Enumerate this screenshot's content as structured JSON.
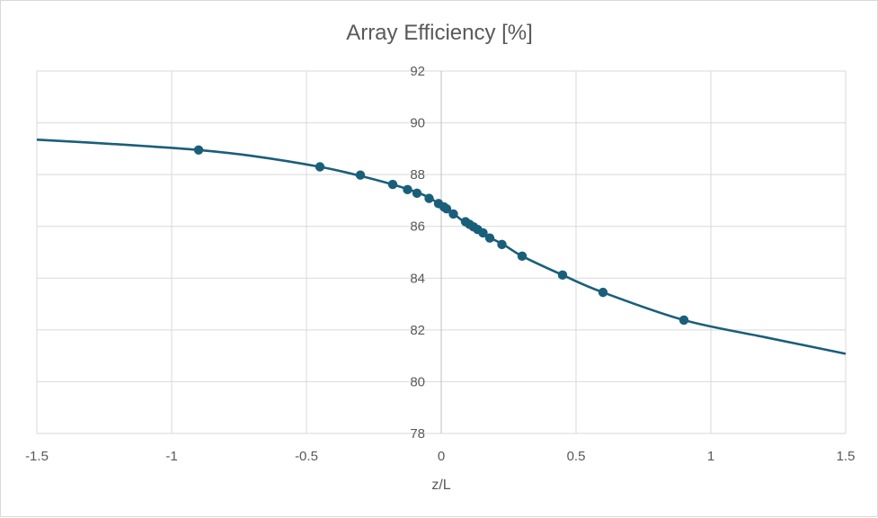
{
  "chart_data": {
    "type": "scatter",
    "title": "Array Efficiency [%]",
    "xlabel": "z/L",
    "ylabel": "",
    "xlim": [
      -1.5,
      1.5
    ],
    "ylim": [
      78,
      92
    ],
    "x_ticks": [
      -1.5,
      -1,
      -0.5,
      0,
      0.5,
      1,
      1.5
    ],
    "x_tick_labels": [
      "-1.5",
      "-1",
      "-0.5",
      "0",
      "0.5",
      "1",
      "1.5"
    ],
    "y_ticks": [
      78,
      80,
      82,
      84,
      86,
      88,
      90,
      92
    ],
    "y_tick_labels": [
      "78",
      "80",
      "82",
      "84",
      "86",
      "88",
      "90",
      "92"
    ],
    "grid": true,
    "legend": "none",
    "color": "#1a5f7a",
    "series": [
      {
        "curve": {
          "x": [
            -1.5,
            -1.2,
            -0.9,
            -0.7,
            -0.45,
            -0.3,
            -0.18,
            -0.12,
            -0.08,
            -0.04,
            -0.01,
            0.01,
            0.02,
            0.05,
            0.1,
            0.15,
            0.23,
            0.3,
            0.45,
            0.6,
            0.9,
            1.2,
            1.5
          ],
          "y": [
            89.35,
            89.17,
            88.95,
            88.72,
            88.3,
            87.95,
            87.62,
            87.42,
            87.28,
            87.08,
            86.88,
            86.75,
            86.65,
            86.45,
            86.05,
            85.72,
            85.3,
            84.85,
            84.12,
            83.45,
            82.38,
            81.72,
            81.08
          ]
        },
        "points": {
          "x": [
            -0.9,
            -0.45,
            -0.3,
            -0.18,
            -0.125,
            -0.09,
            -0.045,
            -0.01,
            0.01,
            0.02,
            0.045,
            0.09,
            0.105,
            0.12,
            0.135,
            0.155,
            0.18,
            0.225,
            0.3,
            0.45,
            0.6,
            0.9
          ],
          "y": [
            88.95,
            88.3,
            87.98,
            87.62,
            87.42,
            87.28,
            87.08,
            86.88,
            86.75,
            86.68,
            86.48,
            86.18,
            86.08,
            85.98,
            85.88,
            85.75,
            85.55,
            85.3,
            84.85,
            84.12,
            83.45,
            82.38
          ]
        }
      }
    ]
  }
}
